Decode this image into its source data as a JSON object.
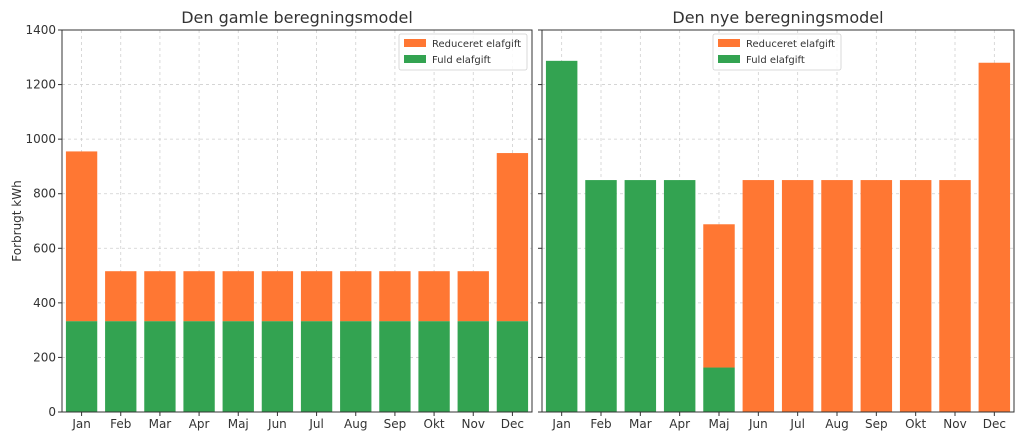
{
  "colors": {
    "reduced": "#FF7733",
    "full": "#33A351",
    "axis": "#333333"
  },
  "shared": {
    "ylabel": "Forbrugt kWh"
  },
  "chart_data": [
    {
      "type": "bar",
      "stacked": true,
      "title": "Den gamle beregningsmodel",
      "xlabel": "",
      "ylabel": "Forbrugt kWh",
      "ylim": [
        0,
        1400
      ],
      "yticks": [
        0,
        200,
        400,
        600,
        800,
        1000,
        1200,
        1400
      ],
      "grid": true,
      "legend_position": "top-right",
      "categories": [
        "Jan",
        "Feb",
        "Mar",
        "Apr",
        "Maj",
        "Jun",
        "Jul",
        "Aug",
        "Sep",
        "Okt",
        "Nov",
        "Dec"
      ],
      "series": [
        {
          "name": "Fuld elafgift",
          "color_key": "full",
          "values": [
            333,
            333,
            333,
            333,
            333,
            333,
            333,
            333,
            333,
            333,
            333,
            333
          ]
        },
        {
          "name": "Reduceret elafgift",
          "color_key": "reduced",
          "values": [
            622,
            183,
            183,
            183,
            183,
            183,
            183,
            183,
            183,
            183,
            183,
            616
          ]
        }
      ],
      "legend_order": [
        "Reduceret elafgift",
        "Fuld elafgift"
      ]
    },
    {
      "type": "bar",
      "stacked": true,
      "title": "Den nye beregningsmodel",
      "xlabel": "",
      "ylabel": "",
      "ylim": [
        0,
        1400
      ],
      "yticks": [
        0,
        200,
        400,
        600,
        800,
        1000,
        1200,
        1400
      ],
      "grid": true,
      "legend_position": "top-center",
      "categories": [
        "Jan",
        "Feb",
        "Mar",
        "Apr",
        "Maj",
        "Jun",
        "Jul",
        "Aug",
        "Sep",
        "Okt",
        "Nov",
        "Dec"
      ],
      "series": [
        {
          "name": "Fuld elafgift",
          "color_key": "full",
          "values": [
            1287,
            850,
            850,
            850,
            163,
            0,
            0,
            0,
            0,
            0,
            0,
            0
          ]
        },
        {
          "name": "Reduceret elafgift",
          "color_key": "reduced",
          "values": [
            0,
            0,
            0,
            0,
            525,
            850,
            850,
            850,
            850,
            850,
            850,
            1280
          ]
        }
      ],
      "legend_order": [
        "Reduceret elafgift",
        "Fuld elafgift"
      ]
    }
  ]
}
